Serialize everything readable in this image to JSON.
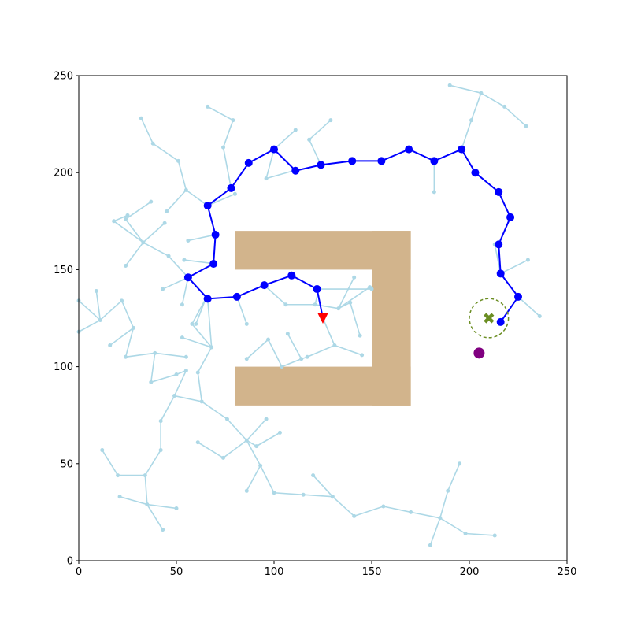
{
  "chart_data": {
    "type": "scatter",
    "title": "",
    "xlabel": "",
    "ylabel": "",
    "xlim": [
      0,
      250
    ],
    "ylim": [
      0,
      250
    ],
    "grid": false,
    "xticks": [
      "0",
      "50",
      "100",
      "150",
      "200",
      "250"
    ],
    "yticks": [
      "0",
      "50",
      "100",
      "150",
      "200",
      "250"
    ],
    "obstacle": {
      "color": "#d2b48c",
      "rects": [
        {
          "x0": 80,
          "y0": 150,
          "x1": 170,
          "y1": 170
        },
        {
          "x0": 150,
          "y0": 80,
          "x1": 170,
          "y1": 170
        },
        {
          "x0": 80,
          "y0": 80,
          "x1": 170,
          "y1": 100
        }
      ]
    },
    "tree_color": "#add8e6",
    "tree_edges": [
      [
        [
          0,
          134
        ],
        [
          11,
          124
        ]
      ],
      [
        [
          0,
          118
        ],
        [
          11,
          124
        ]
      ],
      [
        [
          9,
          139
        ],
        [
          11,
          124
        ]
      ],
      [
        [
          11,
          124
        ],
        [
          22,
          134
        ]
      ],
      [
        [
          22,
          134
        ],
        [
          28,
          120
        ]
      ],
      [
        [
          16,
          111
        ],
        [
          28,
          120
        ]
      ],
      [
        [
          28,
          120
        ],
        [
          24,
          105
        ]
      ],
      [
        [
          24,
          105
        ],
        [
          39,
          107
        ]
      ],
      [
        [
          39,
          107
        ],
        [
          55,
          105
        ]
      ],
      [
        [
          39,
          107
        ],
        [
          37,
          92
        ]
      ],
      [
        [
          37,
          92
        ],
        [
          50,
          96
        ]
      ],
      [
        [
          50,
          96
        ],
        [
          55,
          98
        ]
      ],
      [
        [
          55,
          98
        ],
        [
          49,
          85
        ]
      ],
      [
        [
          49,
          85
        ],
        [
          63,
          82
        ]
      ],
      [
        [
          63,
          82
        ],
        [
          61,
          97
        ]
      ],
      [
        [
          61,
          97
        ],
        [
          68,
          110
        ]
      ],
      [
        [
          68,
          110
        ],
        [
          53,
          115
        ]
      ],
      [
        [
          68,
          110
        ],
        [
          58,
          122
        ]
      ],
      [
        [
          58,
          122
        ],
        [
          65,
          135
        ]
      ],
      [
        [
          65,
          135
        ],
        [
          60,
          122
        ]
      ],
      [
        [
          68,
          110
        ],
        [
          66,
          135
        ]
      ],
      [
        [
          49,
          85
        ],
        [
          42,
          72
        ]
      ],
      [
        [
          42,
          72
        ],
        [
          42,
          57
        ]
      ],
      [
        [
          42,
          57
        ],
        [
          34,
          44
        ]
      ],
      [
        [
          34,
          44
        ],
        [
          20,
          44
        ]
      ],
      [
        [
          20,
          44
        ],
        [
          12,
          57
        ]
      ],
      [
        [
          34,
          44
        ],
        [
          35,
          29
        ]
      ],
      [
        [
          35,
          29
        ],
        [
          21,
          33
        ]
      ],
      [
        [
          35,
          29
        ],
        [
          50,
          27
        ]
      ],
      [
        [
          35,
          29
        ],
        [
          43,
          16
        ]
      ],
      [
        [
          63,
          82
        ],
        [
          76,
          73
        ]
      ],
      [
        [
          76,
          73
        ],
        [
          86,
          62
        ]
      ],
      [
        [
          86,
          62
        ],
        [
          74,
          53
        ]
      ],
      [
        [
          74,
          53
        ],
        [
          61,
          61
        ]
      ],
      [
        [
          86,
          62
        ],
        [
          96,
          73
        ]
      ],
      [
        [
          86,
          62
        ],
        [
          91,
          59
        ]
      ],
      [
        [
          91,
          59
        ],
        [
          103,
          66
        ]
      ],
      [
        [
          86,
          62
        ],
        [
          93,
          49
        ]
      ],
      [
        [
          93,
          49
        ],
        [
          86,
          36
        ]
      ],
      [
        [
          93,
          49
        ],
        [
          100,
          35
        ]
      ],
      [
        [
          100,
          35
        ],
        [
          115,
          34
        ]
      ],
      [
        [
          115,
          34
        ],
        [
          130,
          33
        ]
      ],
      [
        [
          120,
          44
        ],
        [
          130,
          33
        ]
      ],
      [
        [
          130,
          33
        ],
        [
          141,
          23
        ]
      ],
      [
        [
          141,
          23
        ],
        [
          156,
          28
        ]
      ],
      [
        [
          156,
          28
        ],
        [
          170,
          25
        ]
      ],
      [
        [
          170,
          25
        ],
        [
          185,
          22
        ]
      ],
      [
        [
          185,
          22
        ],
        [
          180,
          8
        ]
      ],
      [
        [
          185,
          22
        ],
        [
          198,
          14
        ]
      ],
      [
        [
          198,
          14
        ],
        [
          213,
          13
        ]
      ],
      [
        [
          185,
          22
        ],
        [
          189,
          36
        ]
      ],
      [
        [
          189,
          36
        ],
        [
          195,
          50
        ]
      ],
      [
        [
          56,
          146
        ],
        [
          53,
          132
        ]
      ],
      [
        [
          56,
          146
        ],
        [
          43,
          140
        ]
      ],
      [
        [
          56,
          146
        ],
        [
          46,
          157
        ]
      ],
      [
        [
          46,
          157
        ],
        [
          33,
          164
        ]
      ],
      [
        [
          33,
          164
        ],
        [
          24,
          152
        ]
      ],
      [
        [
          33,
          164
        ],
        [
          44,
          174
        ]
      ],
      [
        [
          33,
          164
        ],
        [
          24,
          176
        ]
      ],
      [
        [
          24,
          176
        ],
        [
          37,
          185
        ]
      ],
      [
        [
          33,
          164
        ],
        [
          18,
          175
        ]
      ],
      [
        [
          18,
          175
        ],
        [
          25,
          178
        ]
      ],
      [
        [
          70,
          153
        ],
        [
          54,
          155
        ]
      ],
      [
        [
          70,
          168
        ],
        [
          56,
          165
        ]
      ],
      [
        [
          66,
          183
        ],
        [
          55,
          191
        ]
      ],
      [
        [
          55,
          191
        ],
        [
          45,
          180
        ]
      ],
      [
        [
          55,
          191
        ],
        [
          51,
          206
        ]
      ],
      [
        [
          51,
          206
        ],
        [
          38,
          215
        ]
      ],
      [
        [
          38,
          215
        ],
        [
          32,
          228
        ]
      ],
      [
        [
          66,
          183
        ],
        [
          80,
          189
        ]
      ],
      [
        [
          78,
          192
        ],
        [
          74,
          213
        ]
      ],
      [
        [
          74,
          213
        ],
        [
          79,
          227
        ]
      ],
      [
        [
          79,
          227
        ],
        [
          66,
          234
        ]
      ],
      [
        [
          100,
          212
        ],
        [
          111,
          222
        ]
      ],
      [
        [
          100,
          212
        ],
        [
          96,
          197
        ]
      ],
      [
        [
          96,
          197
        ],
        [
          110,
          201
        ]
      ],
      [
        [
          124,
          204
        ],
        [
          118,
          217
        ]
      ],
      [
        [
          118,
          217
        ],
        [
          129,
          227
        ]
      ],
      [
        [
          182,
          206
        ],
        [
          182,
          190
        ]
      ],
      [
        [
          196,
          212
        ],
        [
          201,
          227
        ]
      ],
      [
        [
          201,
          227
        ],
        [
          206,
          241
        ]
      ],
      [
        [
          206,
          241
        ],
        [
          190,
          245
        ]
      ],
      [
        [
          206,
          241
        ],
        [
          218,
          234
        ]
      ],
      [
        [
          218,
          234
        ],
        [
          229,
          224
        ]
      ],
      [
        [
          216,
          148
        ],
        [
          230,
          155
        ]
      ],
      [
        [
          216,
          148
        ],
        [
          213,
          163
        ]
      ],
      [
        [
          225,
          136
        ],
        [
          236,
          126
        ]
      ],
      [
        [
          95,
          142
        ],
        [
          106,
          132
        ]
      ],
      [
        [
          106,
          132
        ],
        [
          121,
          132
        ]
      ],
      [
        [
          121,
          132
        ],
        [
          133,
          130
        ]
      ],
      [
        [
          133,
          130
        ],
        [
          141,
          146
        ]
      ],
      [
        [
          133,
          130
        ],
        [
          149,
          141
        ]
      ],
      [
        [
          133,
          130
        ],
        [
          139,
          133
        ]
      ],
      [
        [
          139,
          133
        ],
        [
          144,
          116
        ]
      ],
      [
        [
          121,
          132
        ],
        [
          123,
          140
        ]
      ],
      [
        [
          123,
          140
        ],
        [
          150,
          140
        ]
      ],
      [
        [
          125,
          125
        ],
        [
          131,
          111
        ]
      ],
      [
        [
          131,
          111
        ],
        [
          145,
          106
        ]
      ],
      [
        [
          131,
          111
        ],
        [
          117,
          105
        ]
      ],
      [
        [
          117,
          105
        ],
        [
          114,
          104
        ]
      ],
      [
        [
          114,
          104
        ],
        [
          107,
          117
        ]
      ],
      [
        [
          114,
          104
        ],
        [
          104,
          100
        ]
      ],
      [
        [
          104,
          100
        ],
        [
          97,
          114
        ]
      ],
      [
        [
          97,
          114
        ],
        [
          86,
          104
        ]
      ],
      [
        [
          81,
          136
        ],
        [
          86,
          122
        ]
      ]
    ],
    "path_color": "#0000ff",
    "path": [
      [
        216,
        123
      ],
      [
        225,
        136
      ],
      [
        216,
        148
      ],
      [
        215,
        163
      ],
      [
        221,
        177
      ],
      [
        215,
        190
      ],
      [
        203,
        200
      ],
      [
        196,
        212
      ],
      [
        182,
        206
      ],
      [
        169,
        212
      ],
      [
        155,
        206
      ],
      [
        140,
        206
      ],
      [
        124,
        204
      ],
      [
        111,
        201
      ],
      [
        100,
        212
      ],
      [
        87,
        205
      ],
      [
        78,
        192
      ],
      [
        66,
        183
      ],
      [
        70,
        168
      ],
      [
        69,
        153
      ],
      [
        56,
        146
      ],
      [
        66,
        135
      ],
      [
        81,
        136
      ],
      [
        95,
        142
      ],
      [
        109,
        147
      ],
      [
        122,
        140
      ],
      [
        125,
        125
      ]
    ],
    "start": {
      "x": 125,
      "y": 125,
      "marker": "triangle-down",
      "color": "#ff0000"
    },
    "goal": {
      "x": 210,
      "y": 125,
      "marker": "x",
      "color": "#6b8e23",
      "radius": 10
    },
    "extra_point": {
      "x": 205,
      "y": 107,
      "color": "#800080"
    }
  }
}
